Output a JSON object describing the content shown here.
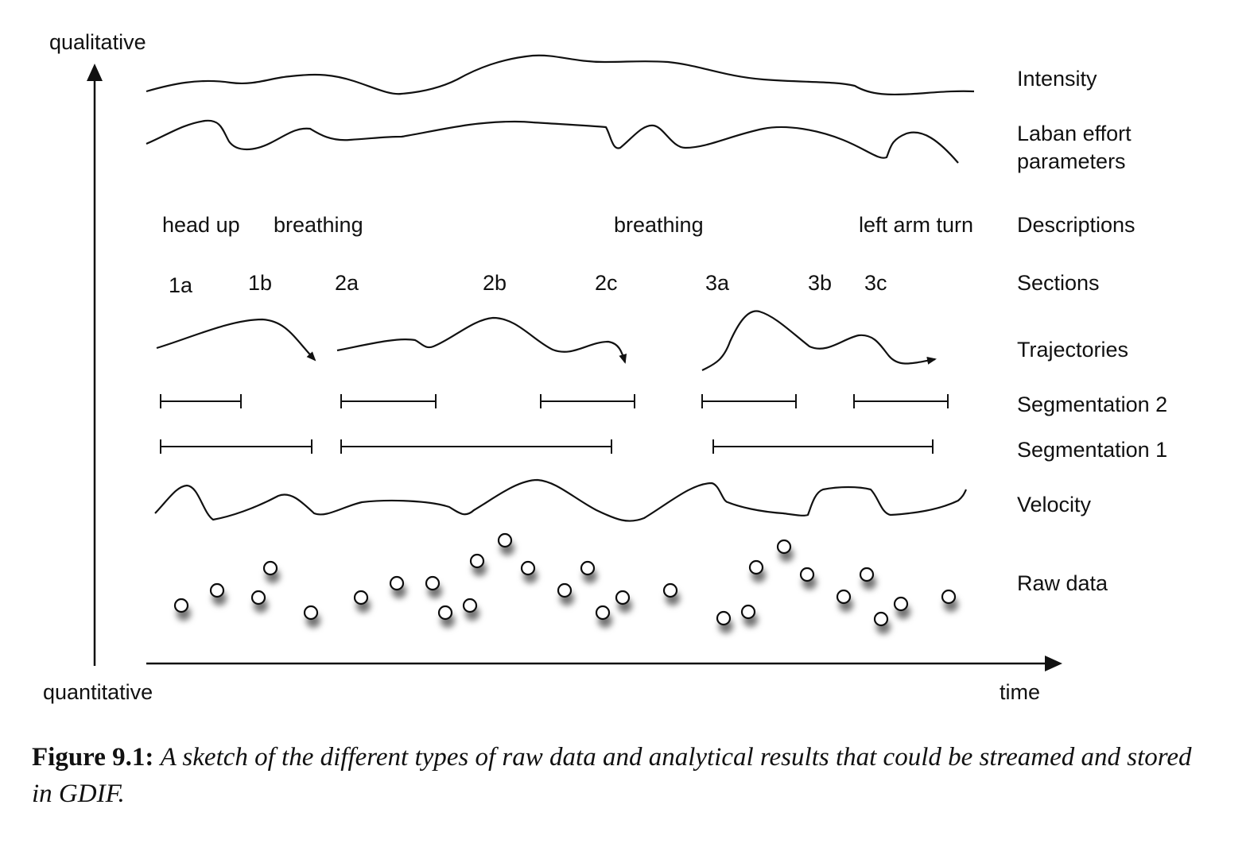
{
  "axes": {
    "y_top_label": "qualitative",
    "y_bottom_label": "quantitative",
    "x_label": "time"
  },
  "rows": {
    "intensity": "Intensity",
    "laban_line1": "Laban effort",
    "laban_line2": "parameters",
    "descriptions": "Descriptions",
    "sections": "Sections",
    "trajectories": "Trajectories",
    "segmentation2": "Segmentation 2",
    "segmentation1": "Segmentation 1",
    "velocity": "Velocity",
    "raw_data": "Raw data"
  },
  "descriptions": [
    "head up",
    "breathing",
    "breathing",
    "left arm turn"
  ],
  "sections": [
    "1a",
    "1b",
    "2a",
    "2b",
    "2c",
    "3a",
    "3b",
    "3c"
  ],
  "caption": {
    "label": "Figure 9.1:",
    "text": "A sketch of the different types of raw data and analytical results that could be streamed and stored in GDIF."
  }
}
